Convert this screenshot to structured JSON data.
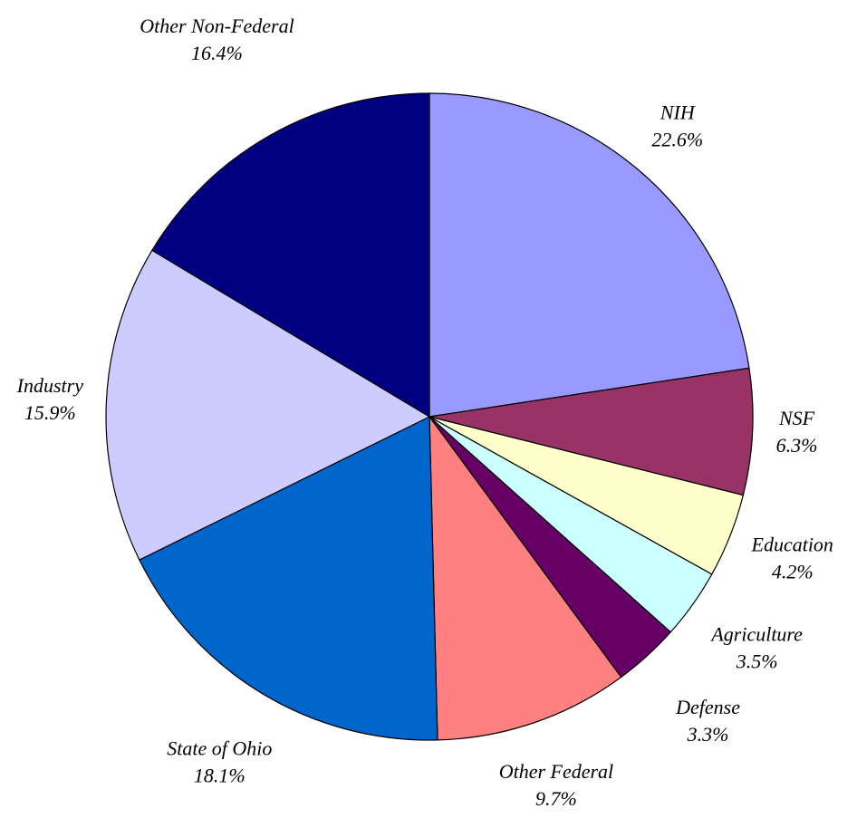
{
  "chart_data": {
    "type": "pie",
    "categories": [
      "NIH",
      "NSF",
      "Education",
      "Agriculture",
      "Defense",
      "Other Federal",
      "State of Ohio",
      "Industry",
      "Other Non-Federal"
    ],
    "values": [
      22.6,
      6.3,
      4.2,
      3.5,
      3.3,
      9.7,
      18.1,
      15.9,
      16.4
    ],
    "value_labels": [
      "22.6%",
      "6.3%",
      "4.2%",
      "3.5%",
      "3.3%",
      "9.7%",
      "18.1%",
      "15.9%",
      "16.4%"
    ],
    "colors": [
      "#9999ff",
      "#993366",
      "#ffffcc",
      "#ccffff",
      "#660066",
      "#ff8080",
      "#0066cc",
      "#ccccff",
      "#000080"
    ]
  }
}
